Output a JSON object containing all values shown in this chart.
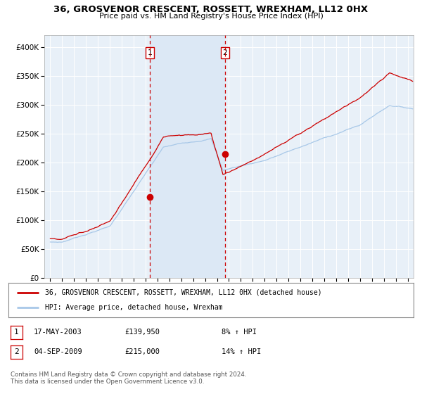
{
  "title": "36, GROSVENOR CRESCENT, ROSSETT, WREXHAM, LL12 0HX",
  "subtitle": "Price paid vs. HM Land Registry's House Price Index (HPI)",
  "legend_line1": "36, GROSVENOR CRESCENT, ROSSETT, WREXHAM, LL12 0HX (detached house)",
  "legend_line2": "HPI: Average price, detached house, Wrexham",
  "footer": "Contains HM Land Registry data © Crown copyright and database right 2024.\nThis data is licensed under the Open Government Licence v3.0.",
  "sale1_date": "17-MAY-2003",
  "sale1_price": "£139,950",
  "sale1_hpi": "8% ↑ HPI",
  "sale2_date": "04-SEP-2009",
  "sale2_price": "£215,000",
  "sale2_hpi": "14% ↑ HPI",
  "sale1_year": 2003.37,
  "sale1_value": 139950,
  "sale2_year": 2009.67,
  "sale2_value": 215000,
  "vline1_year": 2003.37,
  "vline2_year": 2009.67,
  "shade_start": 2003.37,
  "shade_end": 2009.67,
  "hpi_color": "#a8c8e8",
  "price_color": "#cc0000",
  "chart_bg": "#e8f0f8",
  "shade_color": "#dce8f5",
  "grid_color": "#ffffff",
  "ylim_min": 0,
  "ylim_max": 420000,
  "xlim_min": 1994.5,
  "xlim_max": 2025.5
}
